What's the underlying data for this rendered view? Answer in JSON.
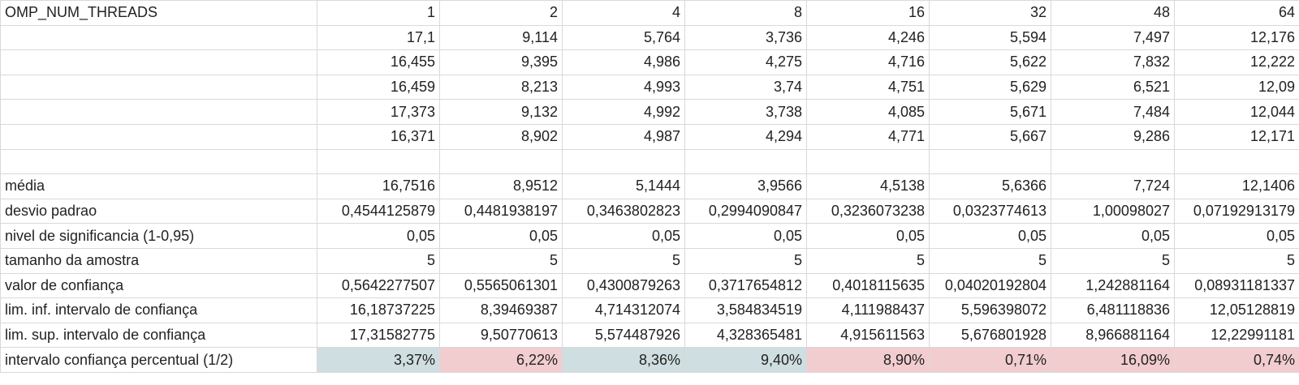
{
  "sheet": {
    "header": {
      "label": "OMP_NUM_THREADS",
      "values": [
        "1",
        "2",
        "4",
        "8",
        "16",
        "32",
        "48",
        "64"
      ]
    },
    "samples": [
      [
        "17,1",
        "9,114",
        "5,764",
        "3,736",
        "4,246",
        "5,594",
        "7,497",
        "12,176"
      ],
      [
        "16,455",
        "9,395",
        "4,986",
        "4,275",
        "4,716",
        "5,622",
        "7,832",
        "12,222"
      ],
      [
        "16,459",
        "8,213",
        "4,993",
        "3,74",
        "4,751",
        "5,629",
        "6,521",
        "12,09"
      ],
      [
        "17,373",
        "9,132",
        "4,992",
        "3,738",
        "4,085",
        "5,671",
        "7,484",
        "12,044"
      ],
      [
        "16,371",
        "8,902",
        "4,987",
        "4,294",
        "4,771",
        "5,667",
        "9,286",
        "12,171"
      ]
    ],
    "stats": [
      {
        "label": "média",
        "values": [
          "16,7516",
          "8,9512",
          "5,1444",
          "3,9566",
          "4,5138",
          "5,6366",
          "7,724",
          "12,1406"
        ]
      },
      {
        "label": "desvio padrao",
        "values": [
          "0,4544125879",
          "0,4481938197",
          "0,3463802823",
          "0,2994090847",
          "0,3236073238",
          "0,0323774613",
          "1,00098027",
          "0,07192913179"
        ]
      },
      {
        "label": "nivel de significancia (1-0,95)",
        "values": [
          "0,05",
          "0,05",
          "0,05",
          "0,05",
          "0,05",
          "0,05",
          "0,05",
          "0,05"
        ]
      },
      {
        "label": "tamanho da amostra",
        "values": [
          "5",
          "5",
          "5",
          "5",
          "5",
          "5",
          "5",
          "5"
        ]
      },
      {
        "label": "valor de confiança",
        "values": [
          "0,5642277507",
          "0,5565061301",
          "0,4300879263",
          "0,3717654812",
          "0,4018115635",
          "0,04020192804",
          "1,242881164",
          "0,08931181337"
        ]
      },
      {
        "label": "lim. inf. intervalo de confiança",
        "values": [
          "16,18737225",
          "8,39469387",
          "4,714312074",
          "3,584834519",
          "4,111988437",
          "5,596398072",
          "6,481118836",
          "12,05128819"
        ]
      },
      {
        "label": "lim. sup. intervalo de confiança",
        "values": [
          "17,31582775",
          "9,50770613",
          "5,574487926",
          "4,328365481",
          "4,915611563",
          "5,676801928",
          "8,966881164",
          "12,22991181"
        ]
      }
    ],
    "percent": {
      "label": "intervalo confiança percentual (1/2)",
      "values": [
        "3,37%",
        "6,22%",
        "8,36%",
        "9,40%",
        "8,90%",
        "0,71%",
        "16,09%",
        "0,74%"
      ],
      "fills": [
        "blue",
        "pink",
        "blue",
        "blue",
        "pink",
        "pink",
        "pink",
        "pink"
      ]
    },
    "colors": {
      "blue": "#cfdee0",
      "pink": "#f2cdd0",
      "grid": "#d9d9d9"
    }
  }
}
